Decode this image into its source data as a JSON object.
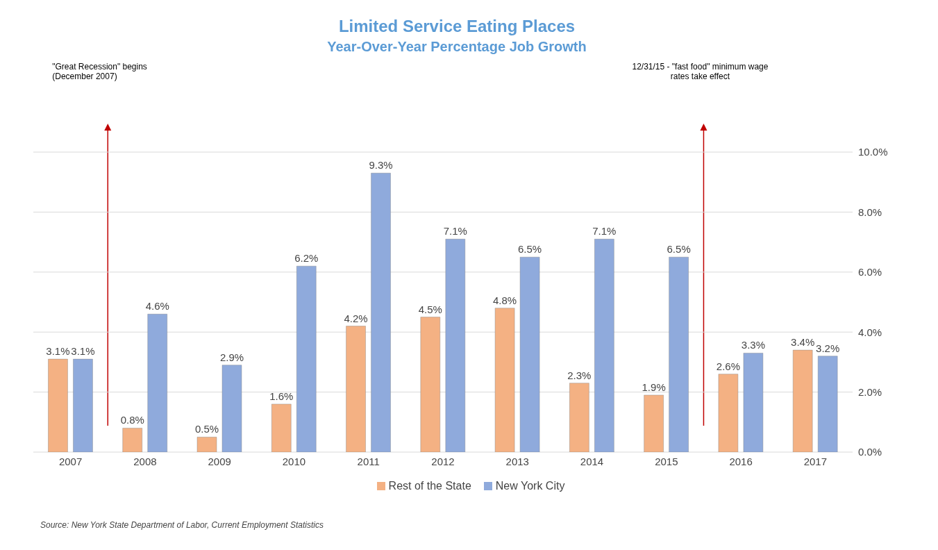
{
  "chart_data": {
    "type": "bar",
    "title": "Limited Service Eating Places",
    "subtitle": "Year-Over-Year Percentage Job Growth",
    "categories": [
      "2007",
      "2008",
      "2009",
      "2010",
      "2011",
      "2012",
      "2013",
      "2014",
      "2015",
      "2016",
      "2017"
    ],
    "series": [
      {
        "name": "Rest of the State",
        "color": "#f4b183",
        "values": [
          3.1,
          0.8,
          0.5,
          1.6,
          4.2,
          4.5,
          4.8,
          2.3,
          1.9,
          2.6,
          3.4
        ],
        "value_labels": [
          "3.1%",
          "0.8%",
          "0.5%",
          "1.6%",
          "4.2%",
          "4.5%",
          "4.8%",
          "2.3%",
          "1.9%",
          "2.6%",
          "3.4%"
        ]
      },
      {
        "name": "New York City",
        "color": "#8faadc",
        "values": [
          3.1,
          4.6,
          2.9,
          6.2,
          9.3,
          7.1,
          6.5,
          7.1,
          6.5,
          3.3,
          3.2
        ],
        "value_labels": [
          "3.1%",
          "4.6%",
          "2.9%",
          "6.2%",
          "9.3%",
          "7.1%",
          "6.5%",
          "7.1%",
          "6.5%",
          "3.3%",
          "3.2%"
        ]
      }
    ],
    "ylim": [
      0,
      10
    ],
    "yticks": [
      {
        "value": 0,
        "label": "0.0%"
      },
      {
        "value": 2,
        "label": "2.0%"
      },
      {
        "value": 4,
        "label": "4.0%"
      },
      {
        "value": 6,
        "label": "6.0%"
      },
      {
        "value": 8,
        "label": "8.0%"
      },
      {
        "value": 10,
        "label": "10.0%"
      }
    ],
    "grid": "y",
    "legend": "bottom",
    "annotations": [
      "\"Great Recession\" begins (December 2007)",
      "12/31/15 - \"fast food\" minimum wage rates take effect",
      "Source:  New York State Department of Labor, Current Employment Statistics"
    ]
  }
}
